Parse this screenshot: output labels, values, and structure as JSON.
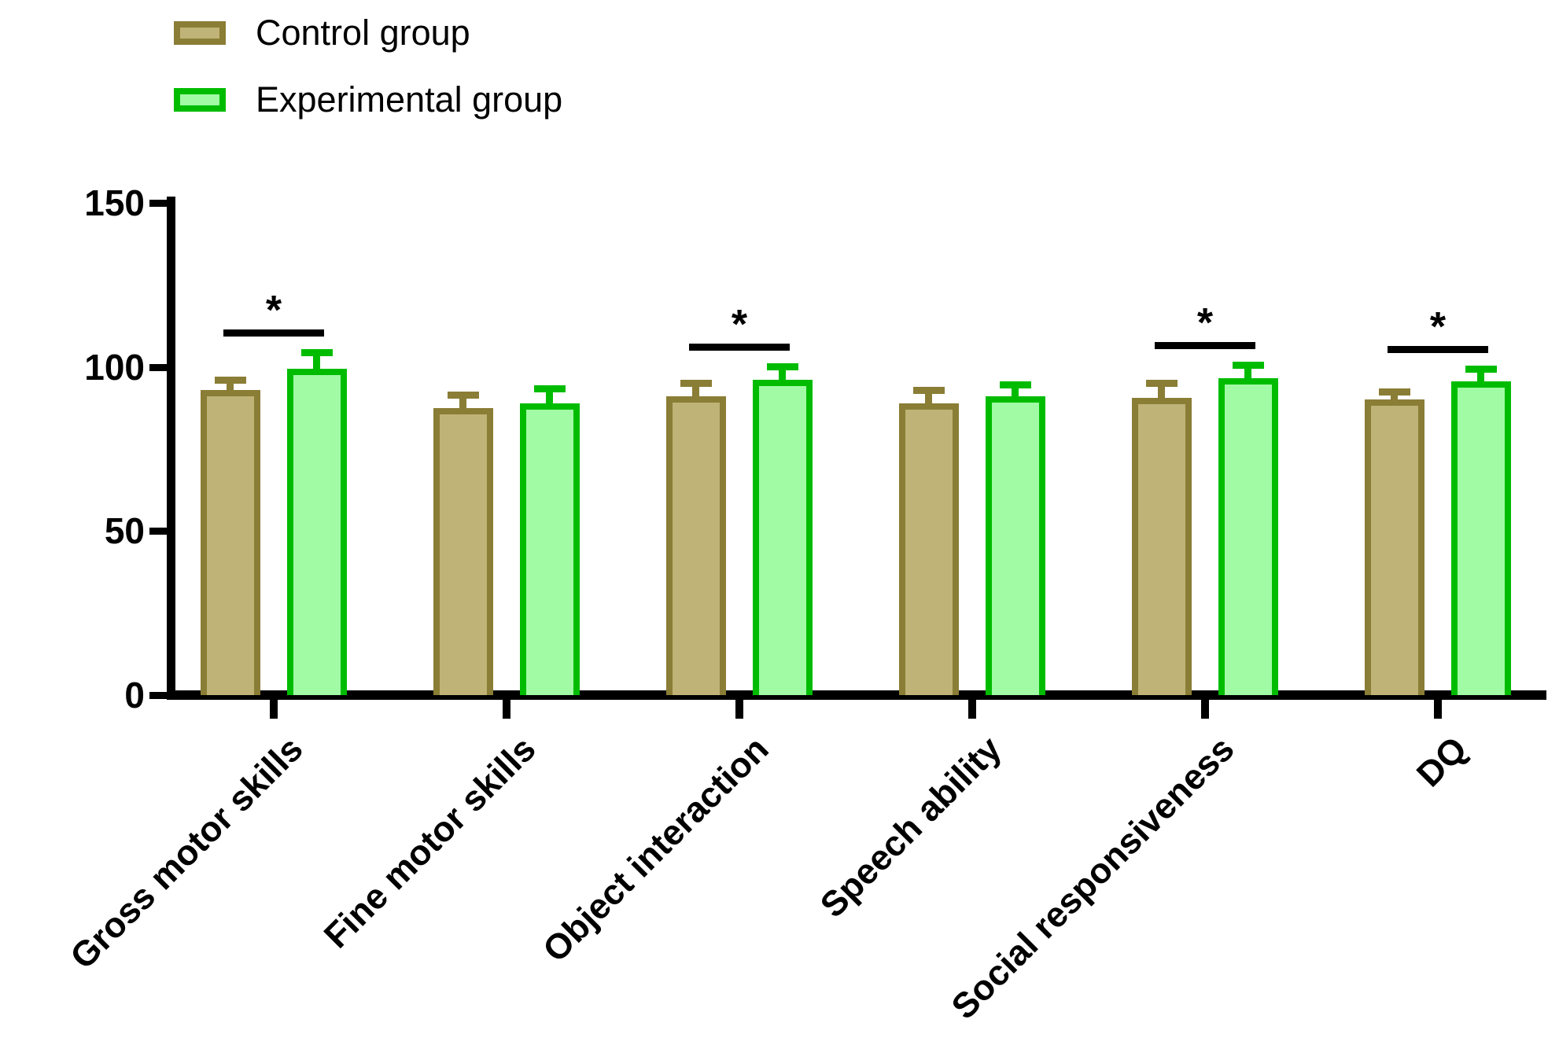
{
  "figure": {
    "background": "#FFFFFF",
    "axis_color": "#000000"
  },
  "chart_data": {
    "type": "bar",
    "title": "",
    "xlabel": "",
    "ylabel": "",
    "categories": [
      "Gross motor skills",
      "Fine motor skills",
      "Object interaction",
      "Speech ability",
      "Social responsiveness",
      "DQ"
    ],
    "series": [
      {
        "name": "Control group",
        "fill": "#BFB377",
        "border": "#8A7D35",
        "values": [
          93,
          87.5,
          91,
          89,
          90.5,
          90
        ],
        "errors": [
          4,
          5,
          5,
          5,
          5.5,
          3.5
        ]
      },
      {
        "name": "Experimental group",
        "fill": "#A0FBA4",
        "border": "#00BC00",
        "values": [
          99.5,
          89,
          96,
          91,
          96.5,
          95.5
        ],
        "errors": [
          6,
          5.5,
          5,
          4.5,
          5,
          5
        ]
      }
    ],
    "error_bars": "upper whiskers only",
    "significance_markers": [
      {
        "category_index": 0,
        "label": "*"
      },
      {
        "category_index": 2,
        "label": "*"
      },
      {
        "category_index": 4,
        "label": "*"
      },
      {
        "category_index": 5,
        "label": "*"
      }
    ],
    "ylim": [
      0,
      150
    ],
    "yticks": [
      0,
      50,
      100,
      150
    ],
    "grid": false,
    "legend_position": "top-left"
  }
}
